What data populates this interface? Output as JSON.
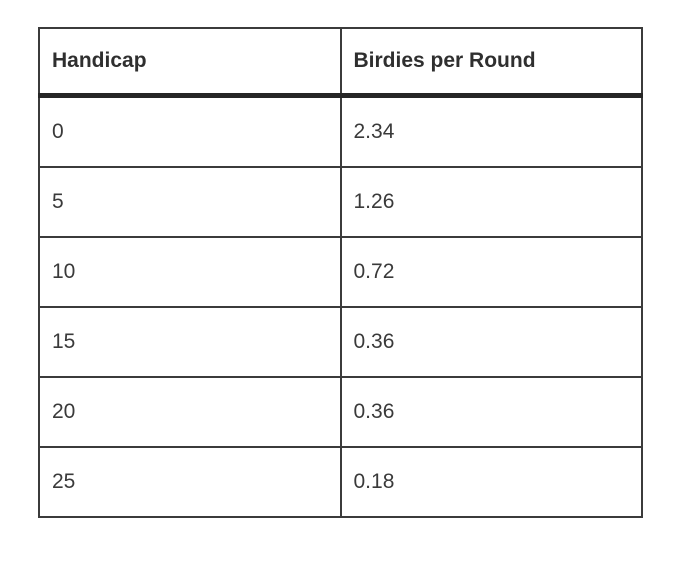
{
  "chart_data": {
    "type": "table",
    "columns": [
      "Handicap",
      "Birdies per Round"
    ],
    "rows": [
      [
        "0",
        "2.34"
      ],
      [
        "5",
        "1.26"
      ],
      [
        "10",
        "0.72"
      ],
      [
        "15",
        "0.36"
      ],
      [
        "20",
        "0.36"
      ],
      [
        "25",
        "0.18"
      ]
    ]
  },
  "colors": {
    "background": "#ffffff",
    "grid_border": "#3b3b3b",
    "header_rule": "#262626",
    "header_text": "#2f2f2f",
    "cell_text": "#3a3a3a"
  }
}
